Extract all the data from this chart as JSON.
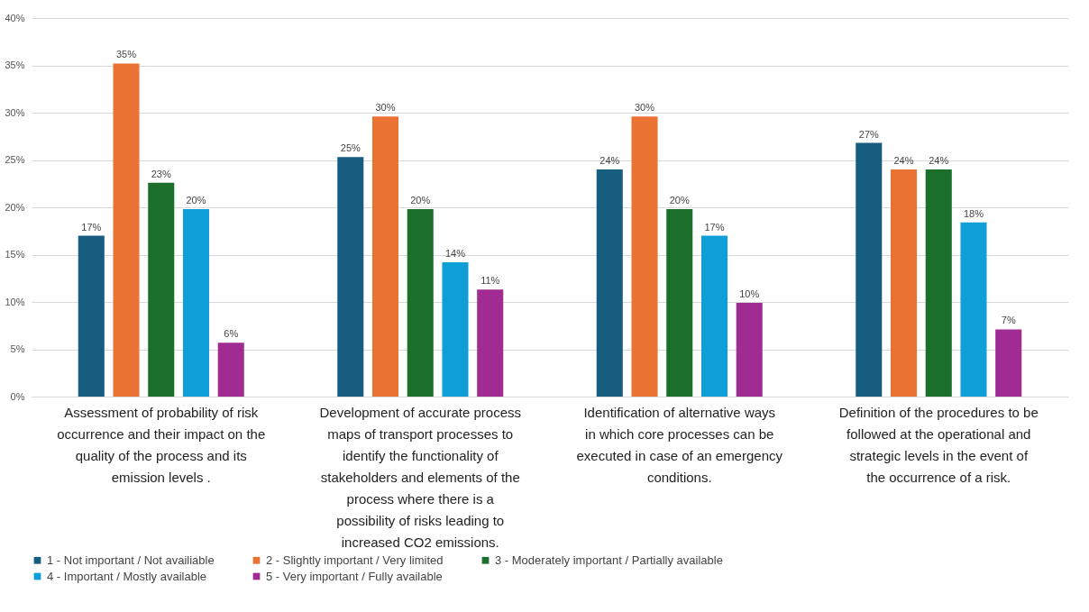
{
  "chart_data": {
    "type": "bar",
    "categories": [
      "Assessment of probability of risk occurrence and their impact on the quality of the process and its emission levels .",
      "Development of accurate process maps of transport processes to identify the functionality of stakeholders and elements of the process where there is a possibility of risks leading to increased CO2 emissions.",
      "Identification of alternative ways in which core processes can be executed in case of an emergency conditions.",
      "Definition of the procedures to be followed at the operational and strategic levels in the event of the occurrence of a risk."
    ],
    "series": [
      {
        "name": "1 - Not important / Not availiable",
        "color": "#165d80",
        "values": [
          17,
          25.3,
          24,
          26.8
        ],
        "value_labels": [
          "17%",
          "25%",
          "24%",
          "27%"
        ]
      },
      {
        "name": "2 - Slightly important / Very limited",
        "color": "#ea7233",
        "values": [
          35.2,
          29.6,
          29.6,
          24
        ],
        "value_labels": [
          "35%",
          "30%",
          "30%",
          "24%"
        ]
      },
      {
        "name": "3 - Moderately important / Partially available",
        "color": "#1c6e2b",
        "values": [
          22.6,
          19.8,
          19.8,
          24
        ],
        "value_labels": [
          "23%",
          "20%",
          "20%",
          "24%"
        ]
      },
      {
        "name": "4 - Important / Mostly available",
        "color": "#0e9fd8",
        "values": [
          19.8,
          14.2,
          17,
          18.4
        ],
        "value_labels": [
          "20%",
          "14%",
          "17%",
          "18%"
        ]
      },
      {
        "name": "5 - Very important / Fully available",
        "color": "#a02b93",
        "values": [
          5.7,
          11.3,
          9.9,
          7.1
        ],
        "value_labels": [
          "6%",
          "11%",
          "10%",
          "7%"
        ]
      }
    ],
    "ylim": [
      0,
      40
    ],
    "yticks": [
      {
        "value": 0,
        "label": "0%"
      },
      {
        "value": 5,
        "label": "5%"
      },
      {
        "value": 10,
        "label": "10%"
      },
      {
        "value": 15,
        "label": "15%"
      },
      {
        "value": 20,
        "label": "20%"
      },
      {
        "value": 25,
        "label": "25%"
      },
      {
        "value": 30,
        "label": "30%"
      },
      {
        "value": 35,
        "label": "35%"
      },
      {
        "value": 40,
        "label": "40%"
      }
    ],
    "grid": "y",
    "legend": "bottom"
  }
}
